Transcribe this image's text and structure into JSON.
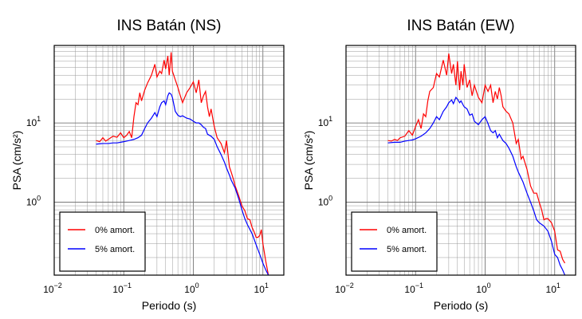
{
  "chart_data": [
    {
      "type": "line",
      "title": "INS Batán (NS)",
      "xlabel": "Periodo (s)",
      "ylabel": "PSA (cm/s²)",
      "xscale": "log",
      "yscale": "log",
      "xlim": [
        0.01,
        20
      ],
      "ylim": [
        0.12,
        95
      ],
      "x_ticks": [
        {
          "v": 0.01,
          "b": "10",
          "e": "−2"
        },
        {
          "v": 0.1,
          "b": "10",
          "e": "−1"
        },
        {
          "v": 1,
          "b": "10",
          "e": "0"
        },
        {
          "v": 10,
          "b": "10",
          "e": "1"
        }
      ],
      "y_ticks": [
        {
          "v": 1,
          "b": "10",
          "e": "0"
        },
        {
          "v": 10,
          "b": "10",
          "e": "1"
        }
      ],
      "grid": true,
      "legend_position": "bottom-left",
      "series": [
        {
          "name": "0% amort.",
          "color": "#ff0000",
          "x": [
            0.04,
            0.045,
            0.05,
            0.055,
            0.06,
            0.07,
            0.08,
            0.09,
            0.1,
            0.11,
            0.12,
            0.13,
            0.14,
            0.15,
            0.16,
            0.17,
            0.18,
            0.2,
            0.22,
            0.25,
            0.28,
            0.3,
            0.33,
            0.35,
            0.38,
            0.4,
            0.43,
            0.45,
            0.48,
            0.5,
            0.55,
            0.6,
            0.65,
            0.7,
            0.8,
            0.9,
            1.0,
            1.1,
            1.2,
            1.3,
            1.4,
            1.5,
            1.6,
            1.7,
            1.8,
            2.0,
            2.2,
            2.5,
            2.8,
            3.0,
            3.3,
            3.5,
            3.8,
            4.0,
            4.5,
            5.0,
            5.5,
            6.0,
            6.5,
            7.0,
            7.5,
            8.0,
            8.5,
            9.0,
            9.5,
            10.0,
            11.0,
            12.0
          ],
          "y": [
            6.0,
            5.8,
            6.5,
            5.9,
            6.2,
            6.8,
            6.6,
            7.5,
            6.5,
            7.0,
            7.8,
            6.5,
            12.0,
            18.0,
            17.0,
            24.0,
            19.0,
            26.0,
            32.0,
            40.0,
            55.0,
            38.0,
            45.0,
            42.0,
            62.0,
            48.0,
            70.0,
            40.0,
            78.0,
            45.0,
            35.0,
            28.0,
            22.0,
            18.0,
            24.0,
            28.0,
            33.0,
            24.0,
            35.0,
            18.0,
            22.0,
            25.0,
            16.0,
            12.0,
            15.0,
            9.0,
            6.5,
            5.5,
            4.2,
            6.0,
            2.8,
            2.4,
            1.9,
            1.6,
            1.2,
            0.9,
            0.78,
            0.62,
            0.6,
            0.48,
            0.42,
            0.36,
            0.36,
            0.38,
            0.45,
            0.3,
            0.18,
            0.12
          ]
        },
        {
          "name": "5% amort.",
          "color": "#0000ff",
          "x": [
            0.04,
            0.05,
            0.06,
            0.07,
            0.08,
            0.09,
            0.1,
            0.12,
            0.14,
            0.16,
            0.18,
            0.2,
            0.22,
            0.25,
            0.28,
            0.3,
            0.33,
            0.35,
            0.38,
            0.4,
            0.43,
            0.45,
            0.48,
            0.5,
            0.55,
            0.6,
            0.65,
            0.7,
            0.8,
            0.9,
            1.0,
            1.1,
            1.2,
            1.3,
            1.4,
            1.5,
            1.6,
            1.8,
            2.0,
            2.2,
            2.5,
            2.8,
            3.0,
            3.3,
            3.5,
            4.0,
            4.5,
            5.0,
            5.5,
            6.0,
            7.0,
            8.0,
            9.0,
            10.0,
            11.0,
            12.0
          ],
          "y": [
            5.4,
            5.5,
            5.5,
            5.6,
            5.6,
            5.7,
            5.8,
            6.0,
            6.2,
            6.5,
            7.0,
            8.5,
            10.0,
            11.5,
            13.5,
            12.0,
            16.0,
            18.0,
            19.0,
            17.0,
            22.0,
            24.0,
            23.0,
            21.0,
            14.0,
            12.5,
            12.0,
            12.3,
            11.5,
            11.2,
            10.5,
            10.0,
            10.0,
            9.5,
            8.8,
            8.5,
            7.2,
            6.8,
            6.2,
            5.0,
            4.0,
            3.2,
            2.7,
            2.2,
            1.9,
            1.5,
            1.1,
            0.8,
            0.62,
            0.52,
            0.4,
            0.29,
            0.22,
            0.17,
            0.14,
            0.12
          ]
        }
      ]
    },
    {
      "type": "line",
      "title": "INS Batán (EW)",
      "xlabel": "Periodo (s)",
      "ylabel": "PSA (cm/s²)",
      "xscale": "log",
      "yscale": "log",
      "xlim": [
        0.01,
        20
      ],
      "ylim": [
        0.12,
        95
      ],
      "x_ticks": [
        {
          "v": 0.01,
          "b": "10",
          "e": "−2"
        },
        {
          "v": 0.1,
          "b": "10",
          "e": "−1"
        },
        {
          "v": 1,
          "b": "10",
          "e": "0"
        },
        {
          "v": 10,
          "b": "10",
          "e": "1"
        }
      ],
      "y_ticks": [
        {
          "v": 1,
          "b": "10",
          "e": "0"
        },
        {
          "v": 10,
          "b": "10",
          "e": "1"
        }
      ],
      "grid": true,
      "legend_position": "bottom-left",
      "series": [
        {
          "name": "0% amort.",
          "color": "#ff0000",
          "x": [
            0.04,
            0.045,
            0.05,
            0.055,
            0.06,
            0.07,
            0.08,
            0.09,
            0.1,
            0.11,
            0.12,
            0.13,
            0.14,
            0.15,
            0.16,
            0.18,
            0.2,
            0.22,
            0.25,
            0.28,
            0.3,
            0.33,
            0.35,
            0.38,
            0.4,
            0.43,
            0.45,
            0.48,
            0.5,
            0.55,
            0.6,
            0.65,
            0.7,
            0.8,
            0.9,
            1.0,
            1.1,
            1.2,
            1.3,
            1.4,
            1.5,
            1.6,
            1.7,
            1.8,
            2.0,
            2.2,
            2.5,
            2.8,
            3.0,
            3.3,
            3.5,
            4.0,
            4.5,
            5.0,
            5.5,
            6.0,
            6.5,
            7.0,
            7.5,
            8.0,
            9.0,
            10.0,
            11.0,
            12.0,
            13.0,
            14.0
          ],
          "y": [
            6.0,
            5.9,
            6.2,
            6.0,
            6.5,
            6.8,
            8.0,
            7.0,
            9.0,
            11.0,
            8.5,
            13.0,
            12.0,
            19.0,
            25.0,
            28.0,
            42.0,
            38.0,
            62.0,
            40.0,
            75.0,
            42.0,
            55.0,
            30.0,
            60.0,
            26.0,
            45.0,
            30.0,
            55.0,
            28.0,
            35.0,
            22.0,
            30.0,
            21.0,
            18.0,
            30.0,
            25.0,
            30.0,
            18.0,
            25.0,
            20.0,
            28.0,
            22.0,
            16.0,
            14.0,
            13.0,
            10.0,
            5.5,
            6.2,
            3.5,
            3.8,
            2.6,
            1.6,
            1.3,
            1.3,
            1.0,
            0.8,
            0.6,
            0.62,
            0.62,
            0.55,
            0.43,
            0.25,
            0.24,
            0.19,
            0.17
          ]
        },
        {
          "name": "5% amort.",
          "color": "#0000ff",
          "x": [
            0.04,
            0.05,
            0.06,
            0.07,
            0.08,
            0.09,
            0.1,
            0.12,
            0.14,
            0.16,
            0.18,
            0.2,
            0.22,
            0.25,
            0.28,
            0.3,
            0.33,
            0.35,
            0.38,
            0.4,
            0.43,
            0.45,
            0.48,
            0.5,
            0.55,
            0.6,
            0.65,
            0.7,
            0.8,
            0.9,
            1.0,
            1.1,
            1.2,
            1.3,
            1.4,
            1.5,
            1.6,
            1.8,
            2.0,
            2.2,
            2.5,
            2.8,
            3.0,
            3.5,
            4.0,
            4.5,
            5.0,
            5.5,
            6.0,
            7.0,
            8.0,
            9.0,
            10.0,
            11.0,
            12.0,
            13.0,
            14.0
          ],
          "y": [
            5.6,
            5.7,
            5.7,
            5.9,
            6.0,
            6.1,
            6.3,
            6.8,
            7.5,
            8.5,
            10.0,
            12.0,
            11.0,
            14.0,
            16.0,
            18.0,
            19.5,
            17.5,
            21.0,
            20.0,
            18.0,
            19.0,
            17.0,
            16.0,
            15.0,
            12.5,
            13.0,
            10.5,
            9.5,
            11.0,
            12.0,
            9.8,
            8.0,
            7.5,
            8.0,
            6.5,
            7.2,
            6.0,
            5.5,
            4.8,
            3.8,
            2.8,
            2.4,
            1.8,
            1.3,
            1.0,
            0.78,
            0.6,
            0.55,
            0.5,
            0.43,
            0.32,
            0.22,
            0.2,
            0.16,
            0.14,
            0.12
          ]
        }
      ]
    }
  ]
}
